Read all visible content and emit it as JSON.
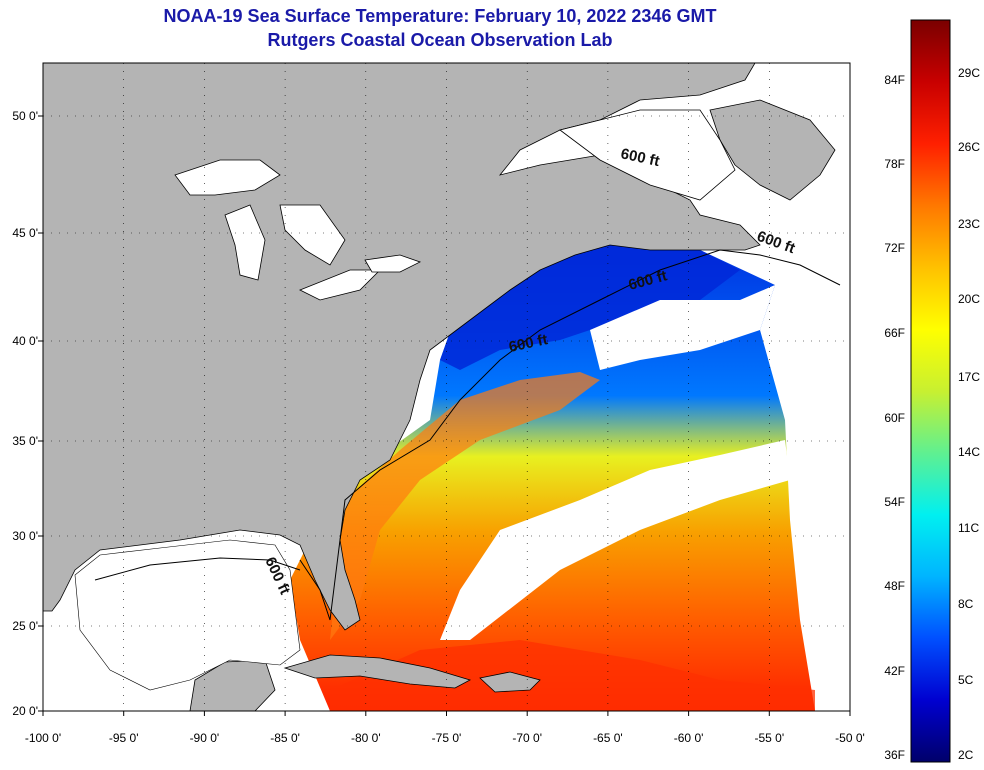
{
  "title": {
    "line1": "NOAA-19 Sea Surface Temperature:  February 10, 2022 2346 GMT",
    "line2": "Rutgers Coastal Ocean Observation Lab"
  },
  "map": {
    "lon_labels": [
      "-100 0'",
      "-95 0'",
      "-90 0'",
      "-85 0'",
      "-80 0'",
      "-75 0'",
      "-70 0'",
      "-65 0'",
      "-60 0'",
      "-55 0'",
      "-50 0'"
    ],
    "lat_labels": [
      "20 0'",
      "25 0'",
      "30 0'",
      "35 0'",
      "40 0'",
      "45 0'",
      "50 0'"
    ],
    "contour_labels": [
      "600 ft",
      "600 ft",
      "600 ft",
      "600 ft",
      "600 ft"
    ],
    "colors": {
      "land": "#b4b4b4",
      "cloud": "#ffffff",
      "frame": "#000000"
    }
  },
  "colorbar": {
    "fahrenheit_labels": [
      "84F",
      "78F",
      "72F",
      "66F",
      "60F",
      "54F",
      "48F",
      "42F",
      "36F"
    ],
    "celsius_labels": [
      "29C",
      "26C",
      "23C",
      "20C",
      "17C",
      "14C",
      "11C",
      "8C",
      "5C",
      "2C"
    ],
    "gradient": [
      "#00006a",
      "#0000d0",
      "#0050ff",
      "#00b4ff",
      "#00f0f0",
      "#60f090",
      "#c8f030",
      "#ffff00",
      "#ffc000",
      "#ff7800",
      "#ff2000",
      "#c80000",
      "#7a0000"
    ]
  }
}
